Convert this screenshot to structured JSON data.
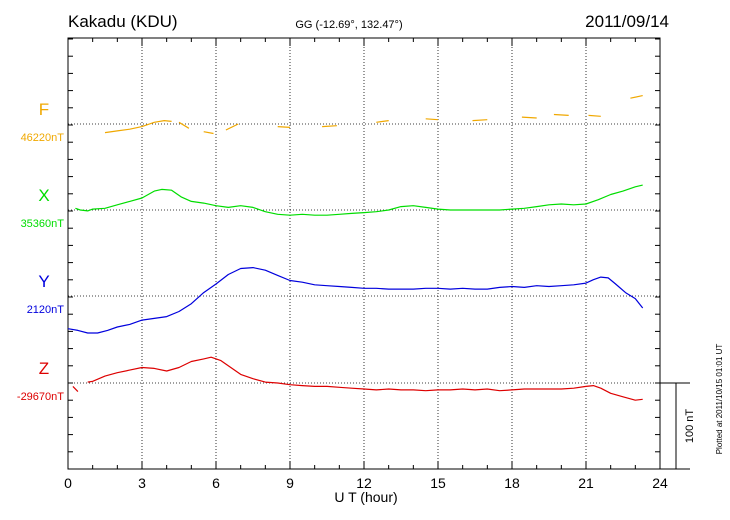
{
  "header": {
    "station": "Kakadu (KDU)",
    "coords": "GG (-12.69°, 132.47°)",
    "date": "2011/09/14"
  },
  "footer_note": "Plotted at 2011/10/15 01:01 UT",
  "scale_label": "100 nT",
  "chart_data": {
    "type": "line",
    "xlabel": "U T (hour)",
    "xlim": [
      0,
      24
    ],
    "xticks": [
      "0",
      "3",
      "6",
      "9",
      "12",
      "15",
      "18",
      "21",
      "24"
    ],
    "scale_nT": 100,
    "grid": true,
    "series": [
      {
        "name": "F",
        "baseline_label": "46220nT",
        "color": "#f0a800",
        "gapped": true,
        "x": [
          1.5,
          2.0,
          2.5,
          3.0,
          3.5,
          3.9,
          4.2,
          null,
          4.5,
          4.9,
          null,
          5.5,
          5.9,
          null,
          6.4,
          6.9,
          null,
          8.5,
          9.0,
          null,
          10.3,
          10.9,
          null,
          12.5,
          13.0,
          null,
          14.5,
          15.0,
          null,
          16.4,
          17.0,
          null,
          18.4,
          19.0,
          null,
          19.7,
          20.3,
          null,
          21.1,
          21.6,
          null,
          22.8,
          23.3
        ],
        "y": [
          -10,
          -8,
          -6,
          -3,
          2,
          4,
          3,
          null,
          2,
          -5,
          null,
          -9,
          -11,
          null,
          -7,
          0,
          null,
          -3,
          -4,
          null,
          -3,
          -2,
          null,
          2,
          4,
          null,
          6,
          5,
          null,
          4,
          5,
          null,
          8,
          7,
          null,
          11,
          10,
          null,
          10,
          9,
          null,
          30,
          33
        ]
      },
      {
        "name": "X",
        "baseline_label": "35360nT",
        "color": "#00dd00",
        "gapped": false,
        "x": [
          0.3,
          0.5,
          0.8,
          1.0,
          1.5,
          2.0,
          2.5,
          3.0,
          3.5,
          3.8,
          4.2,
          4.6,
          5.0,
          5.5,
          6.0,
          6.5,
          7.0,
          7.5,
          8.0,
          8.5,
          9.0,
          9.5,
          10.0,
          10.5,
          11.0,
          11.5,
          12.0,
          12.5,
          13.0,
          13.5,
          14.0,
          14.5,
          15.0,
          15.5,
          16.0,
          16.5,
          17.0,
          17.5,
          18.0,
          18.5,
          19.0,
          19.5,
          20.0,
          20.5,
          21.0,
          21.5,
          22.0,
          22.5,
          23.0,
          23.3
        ],
        "y": [
          2,
          0,
          -1,
          1,
          2,
          6,
          10,
          14,
          22,
          24,
          23,
          15,
          10,
          8,
          5,
          3,
          5,
          3,
          -2,
          -5,
          -6,
          -5,
          -6,
          -6,
          -5,
          -4,
          -3,
          -2,
          0,
          4,
          5,
          3,
          1,
          0,
          0,
          0,
          0,
          0,
          1,
          2,
          4,
          6,
          7,
          6,
          7,
          12,
          18,
          22,
          27,
          29
        ]
      },
      {
        "name": "Y",
        "baseline_label": "2120nT",
        "color": "#0000dd",
        "gapped": false,
        "x": [
          0.0,
          0.4,
          0.8,
          1.2,
          1.6,
          2.0,
          2.5,
          3.0,
          3.5,
          4.0,
          4.5,
          5.0,
          5.5,
          6.0,
          6.5,
          7.0,
          7.5,
          8.0,
          8.5,
          9.0,
          9.5,
          10.0,
          10.5,
          11.0,
          11.5,
          12.0,
          12.5,
          13.0,
          13.5,
          14.0,
          14.5,
          15.0,
          15.5,
          16.0,
          16.5,
          17.0,
          17.5,
          18.0,
          18.5,
          19.0,
          19.5,
          20.0,
          20.5,
          21.0,
          21.3,
          21.6,
          21.9,
          22.2,
          22.6,
          23.0,
          23.3
        ],
        "y": [
          -38,
          -40,
          -43,
          -43,
          -40,
          -36,
          -33,
          -28,
          -26,
          -24,
          -18,
          -9,
          4,
          14,
          25,
          32,
          33,
          30,
          24,
          18,
          16,
          13,
          12,
          11,
          10,
          9,
          9,
          8,
          8,
          8,
          9,
          9,
          8,
          9,
          8,
          8,
          10,
          11,
          10,
          12,
          11,
          12,
          13,
          15,
          19,
          22,
          21,
          14,
          4,
          -3,
          -14
        ]
      },
      {
        "name": "Z",
        "baseline_label": "-29670nT",
        "color": "#dd0000",
        "gapped": false,
        "x": [
          0.2,
          0.4,
          null,
          0.8,
          1.0,
          1.5,
          2.0,
          2.5,
          3.0,
          3.5,
          4.0,
          4.5,
          5.0,
          5.5,
          5.8,
          6.2,
          6.6,
          7.0,
          7.5,
          8.0,
          8.5,
          9.0,
          9.5,
          10.0,
          10.5,
          11.0,
          11.5,
          12.0,
          12.5,
          13.0,
          13.5,
          14.0,
          14.5,
          15.0,
          15.5,
          16.0,
          16.5,
          17.0,
          17.5,
          18.0,
          18.5,
          19.0,
          19.5,
          20.0,
          20.5,
          21.0,
          21.3,
          21.6,
          22.0,
          22.5,
          23.0,
          23.3
        ],
        "y": [
          -4,
          -10,
          null,
          1,
          2,
          8,
          12,
          15,
          18,
          17,
          14,
          18,
          25,
          28,
          30,
          26,
          18,
          10,
          5,
          1,
          0,
          -2,
          -3,
          -4,
          -4,
          -5,
          -6,
          -7,
          -8,
          -7,
          -8,
          -8,
          -9,
          -8,
          -8,
          -7,
          -8,
          -7,
          -9,
          -8,
          -7,
          -7,
          -7,
          -7,
          -6,
          -4,
          -3,
          -6,
          -12,
          -16,
          -20,
          -19
        ]
      }
    ]
  }
}
